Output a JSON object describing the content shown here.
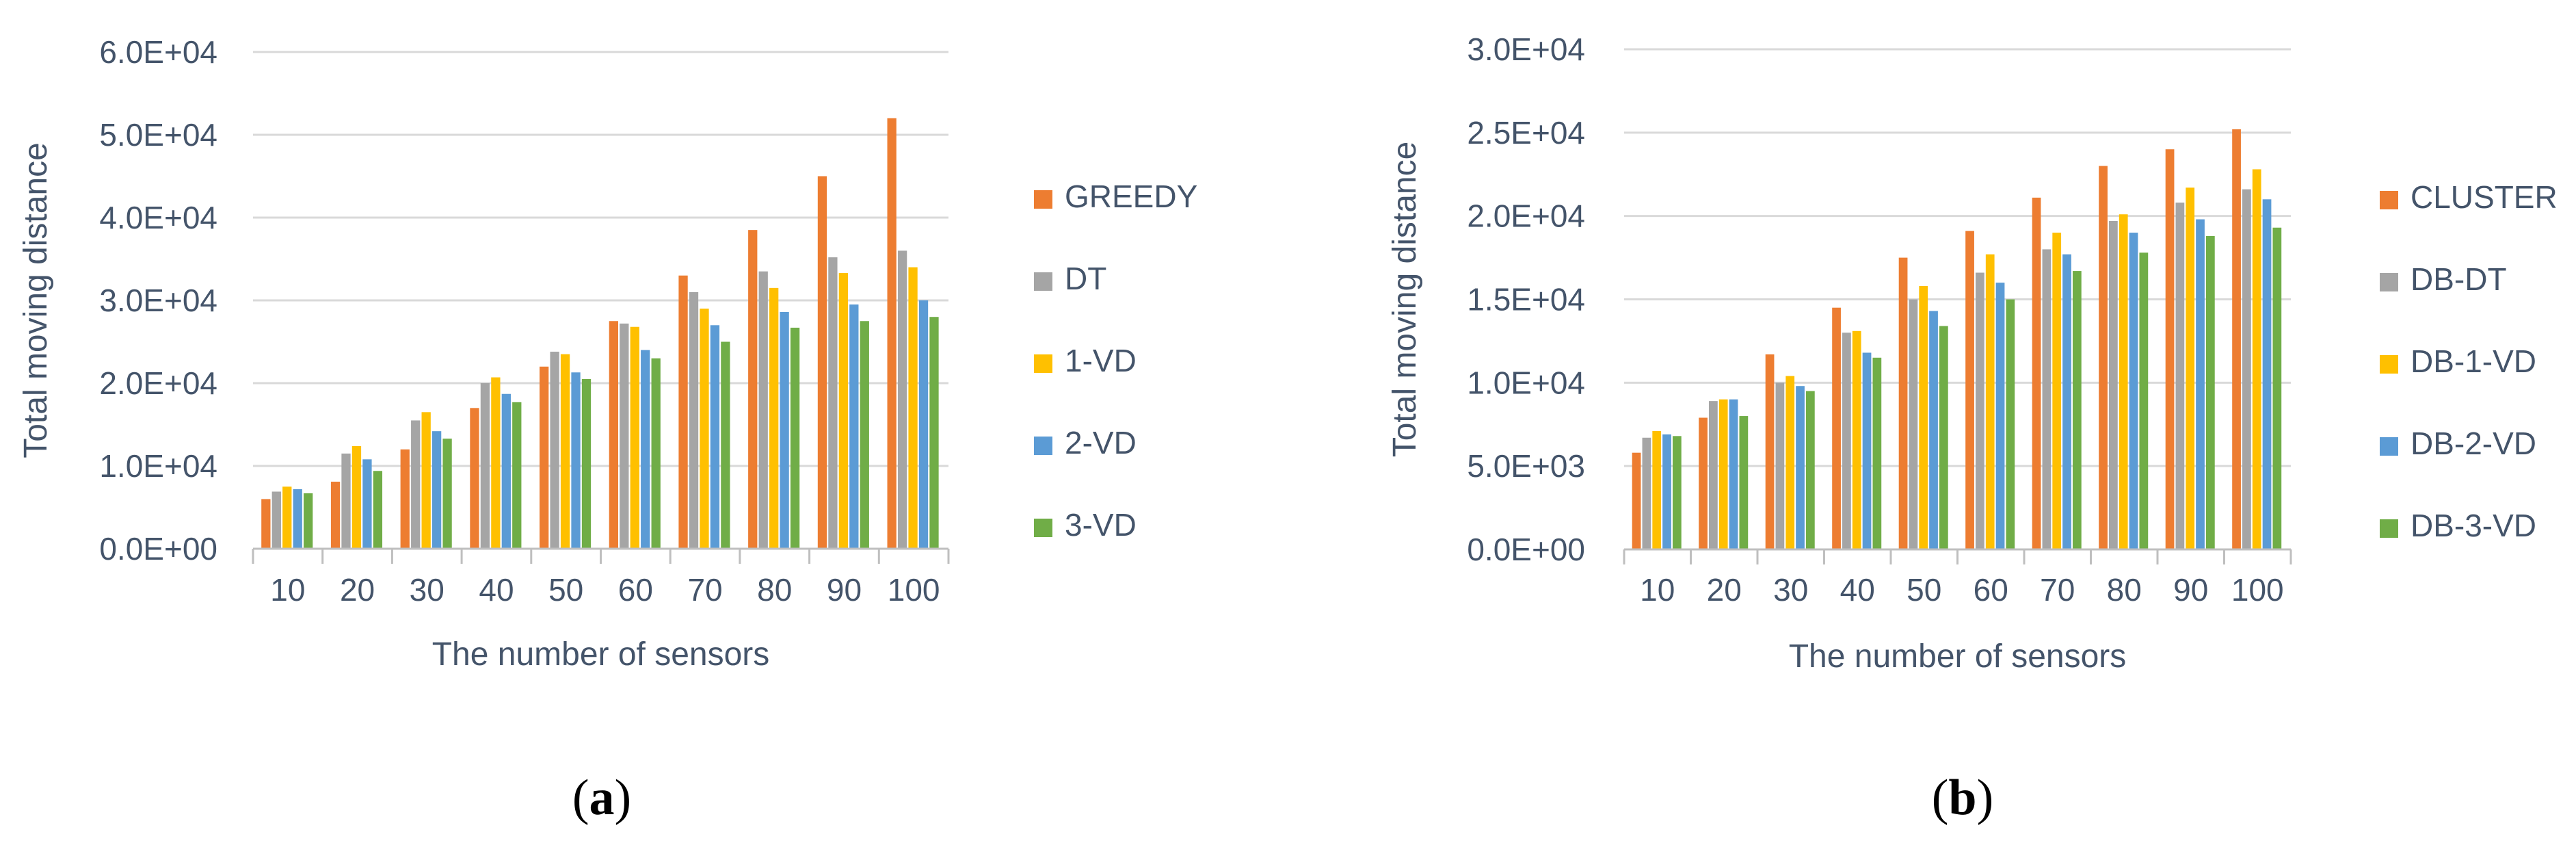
{
  "chart_data": [
    {
      "type": "bar",
      "panel_label": "a",
      "title": "",
      "xlabel": "The number of sensors",
      "ylabel": "Total moving distance",
      "categories": [
        "10",
        "20",
        "30",
        "40",
        "50",
        "60",
        "70",
        "80",
        "90",
        "100"
      ],
      "ylim": [
        0,
        60000
      ],
      "yticks": [
        "0.0E+00",
        "1.0E+04",
        "2.0E+04",
        "3.0E+04",
        "4.0E+04",
        "5.0E+04",
        "6.0E+04"
      ],
      "legend_position": "right",
      "grid": true,
      "series": [
        {
          "name": "GREEDY",
          "color": "#ed7d31",
          "values": [
            6000,
            8100,
            12000,
            17000,
            22000,
            27500,
            33000,
            38500,
            45000,
            52000
          ]
        },
        {
          "name": "DT",
          "color": "#a5a5a5",
          "values": [
            6900,
            11500,
            15500,
            20000,
            23800,
            27200,
            31000,
            33500,
            35200,
            36000
          ]
        },
        {
          "name": "1-VD",
          "color": "#ffc000",
          "values": [
            7500,
            12400,
            16500,
            20700,
            23500,
            26800,
            29000,
            31500,
            33300,
            34000
          ]
        },
        {
          "name": "2-VD",
          "color": "#5b9bd5",
          "values": [
            7200,
            10800,
            14200,
            18700,
            21300,
            24000,
            27000,
            28600,
            29500,
            30000
          ]
        },
        {
          "name": "3-VD",
          "color": "#70ad47",
          "values": [
            6700,
            9400,
            13300,
            17700,
            20500,
            23000,
            25000,
            26700,
            27500,
            28000
          ]
        }
      ]
    },
    {
      "type": "bar",
      "panel_label": "b",
      "title": "",
      "xlabel": "The number of sensors",
      "ylabel": "Total moving distance",
      "categories": [
        "10",
        "20",
        "30",
        "40",
        "50",
        "60",
        "70",
        "80",
        "90",
        "100"
      ],
      "ylim": [
        0,
        30000
      ],
      "yticks": [
        "0.0E+00",
        "5.0E+03",
        "1.0E+04",
        "1.5E+04",
        "2.0E+04",
        "2.5E+04",
        "3.0E+04"
      ],
      "legend_position": "right",
      "grid": true,
      "series": [
        {
          "name": "CLUSTER",
          "color": "#ed7d31",
          "values": [
            5800,
            7900,
            11700,
            14500,
            17500,
            19100,
            21100,
            23000,
            24000,
            25200
          ]
        },
        {
          "name": "DB-DT",
          "color": "#a5a5a5",
          "values": [
            6700,
            8900,
            10000,
            13000,
            15000,
            16600,
            18000,
            19700,
            20800,
            21600
          ]
        },
        {
          "name": "DB-1-VD",
          "color": "#ffc000",
          "values": [
            7100,
            9000,
            10400,
            13100,
            15800,
            17700,
            19000,
            20100,
            21700,
            22800
          ]
        },
        {
          "name": "DB-2-VD",
          "color": "#5b9bd5",
          "values": [
            6900,
            9000,
            9800,
            11800,
            14300,
            16000,
            17700,
            19000,
            19800,
            21000
          ]
        },
        {
          "name": "DB-3-VD",
          "color": "#70ad47",
          "values": [
            6800,
            8000,
            9500,
            11500,
            13400,
            15000,
            16700,
            17800,
            18800,
            19300
          ]
        }
      ]
    }
  ]
}
